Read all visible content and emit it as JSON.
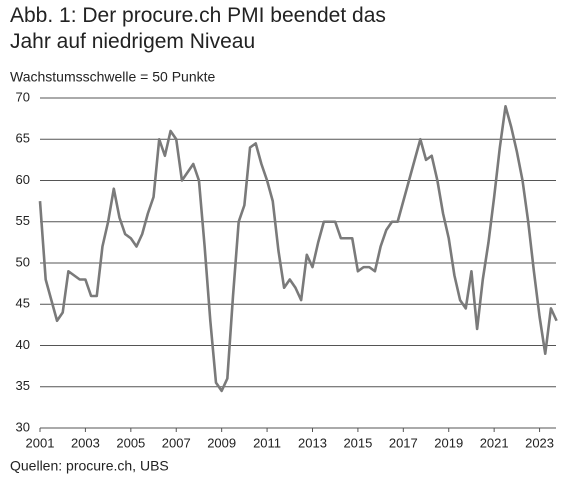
{
  "chart_data": {
    "type": "line",
    "title": "Abb. 1: Der procure.ch PMI beendet das Jahr auf niedrigem Niveau",
    "subtitle": "Wachstumsschwelle = 50 Punkte",
    "source": "Quellen: procure.ch, UBS",
    "color": "#7a7a7a",
    "grid": true,
    "xlim": [
      2001,
      2023.9
    ],
    "xticks": [
      2001,
      2003,
      2005,
      2007,
      2009,
      2011,
      2013,
      2015,
      2017,
      2019,
      2021,
      2023
    ],
    "ylim": [
      30,
      70
    ],
    "yticks": [
      30,
      35,
      40,
      45,
      50,
      55,
      60,
      65,
      70
    ],
    "x": [
      2001,
      2001.25,
      2001.5,
      2001.75,
      2002,
      2002.25,
      2002.5,
      2002.75,
      2003,
      2003.25,
      2003.5,
      2003.75,
      2004,
      2004.25,
      2004.5,
      2004.75,
      2005,
      2005.25,
      2005.5,
      2005.75,
      2006,
      2006.25,
      2006.5,
      2006.75,
      2007,
      2007.25,
      2007.5,
      2007.75,
      2008,
      2008.25,
      2008.5,
      2008.75,
      2009,
      2009.25,
      2009.5,
      2009.75,
      2010,
      2010.25,
      2010.5,
      2010.75,
      2011,
      2011.25,
      2011.5,
      2011.75,
      2012,
      2012.25,
      2012.5,
      2012.75,
      2013,
      2013.25,
      2013.5,
      2013.75,
      2014,
      2014.25,
      2014.5,
      2014.75,
      2015,
      2015.25,
      2015.5,
      2015.75,
      2016,
      2016.25,
      2016.5,
      2016.75,
      2017,
      2017.25,
      2017.5,
      2017.75,
      2018,
      2018.25,
      2018.5,
      2018.75,
      2019,
      2019.25,
      2019.5,
      2019.75,
      2020,
      2020.25,
      2020.5,
      2020.75,
      2021,
      2021.25,
      2021.5,
      2021.75,
      2022,
      2022.25,
      2022.5,
      2022.75,
      2023,
      2023.25,
      2023.5,
      2023.75
    ],
    "values": [
      57.5,
      48,
      45.5,
      43,
      44,
      49,
      48.5,
      48,
      48,
      46,
      46,
      52,
      55,
      59,
      55.5,
      53.5,
      53,
      52,
      53.5,
      56,
      58,
      65,
      63,
      66,
      65,
      60,
      61,
      62,
      60,
      52,
      43,
      35.5,
      34.5,
      36,
      46,
      55,
      57,
      64,
      64.5,
      62,
      60,
      57.5,
      51.5,
      47,
      48,
      47,
      45.5,
      51,
      49.5,
      52.5,
      55,
      55,
      55,
      53,
      53,
      53,
      49,
      49.5,
      49.5,
      49,
      52,
      54,
      55,
      55,
      57.5,
      60,
      62.5,
      65,
      62.5,
      63,
      60,
      56,
      53,
      48.5,
      45.5,
      44.5,
      49,
      42,
      48,
      52.5,
      58,
      64,
      69,
      66.5,
      63.5,
      60,
      55,
      49,
      43.5,
      39,
      44.5,
      43
    ]
  }
}
